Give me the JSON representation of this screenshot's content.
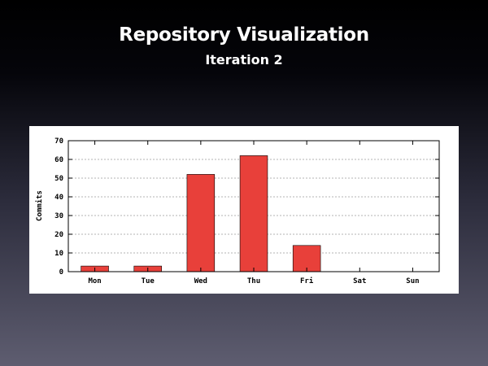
{
  "slide": {
    "title": "Repository Visualization",
    "subtitle": "Iteration 2"
  },
  "chart_data": {
    "type": "bar",
    "categories": [
      "Mon",
      "Tue",
      "Wed",
      "Thu",
      "Fri",
      "Sat",
      "Sun"
    ],
    "values": [
      3,
      3,
      52,
      62,
      14,
      0,
      0
    ],
    "xlabel": "",
    "ylabel": "Commits",
    "ylim": [
      0,
      70
    ],
    "yticks": [
      0,
      10,
      20,
      30,
      40,
      50,
      60,
      70
    ],
    "grid": true,
    "bar_color": "#e8403a",
    "grid_color": "#9a9a9a"
  }
}
